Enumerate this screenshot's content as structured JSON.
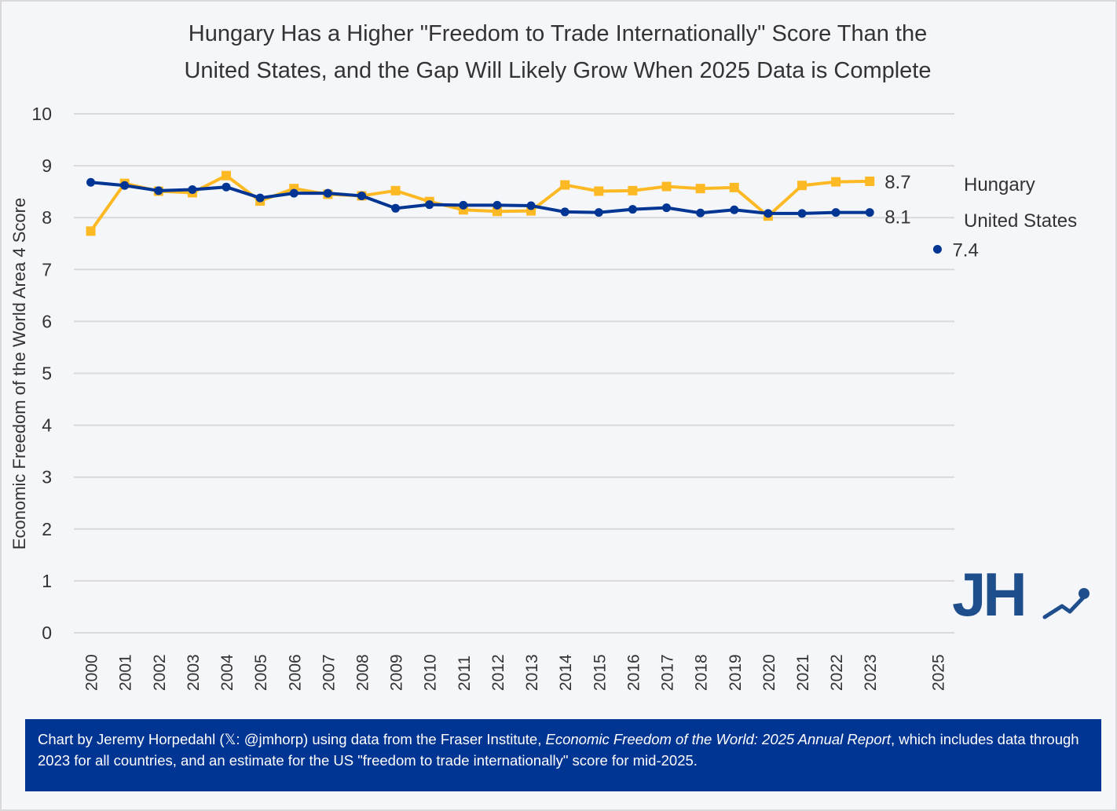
{
  "title": {
    "line1": "Hungary Has a Higher \"Freedom to Trade Internationally\" Score Than the",
    "line2": "United States, and the Gap Will Likely Grow When 2025 Data is Complete"
  },
  "colors": {
    "background": "#F5F6FA",
    "hungary": "#FDB924",
    "united_states": "#003594",
    "gridline": "#D9D9D9",
    "text": "#333333",
    "footer_bg": "#003594",
    "logo": "#1F4E8C"
  },
  "logo": {
    "text": "JH",
    "icon": "trend-line-icon"
  },
  "footer": {
    "part1": "Chart by Jeremy Horpedahl (𝕏: @jmhorp) using data from the Fraser Institute, ",
    "italic": "Economic Freedom of the World: 2025 Annual Report",
    "part2": ", which includes data through 2023 for all countries, and an estimate for the US \"freedom to trade internationally\" score for mid-2025."
  },
  "chart_data": {
    "type": "line",
    "title": "Hungary Has a Higher \"Freedom to Trade Internationally\" Score Than the United States, and the Gap Will Likely Grow When 2025 Data is Complete",
    "xlabel": "",
    "ylabel": "Economic Freedom of the World Area 4 Score",
    "ylim": [
      0,
      10
    ],
    "yticks": [
      "0",
      "1",
      "2",
      "3",
      "4",
      "5",
      "6",
      "7",
      "8",
      "9",
      "10"
    ],
    "categories": [
      "2000",
      "2001",
      "2002",
      "2003",
      "2004",
      "2005",
      "2006",
      "2007",
      "2008",
      "2009",
      "2010",
      "2011",
      "2012",
      "2013",
      "2014",
      "2015",
      "2016",
      "2017",
      "2018",
      "2019",
      "2020",
      "2021",
      "2022",
      "2023",
      "",
      "2025"
    ],
    "grid": true,
    "legend_position": "right",
    "series": [
      {
        "name": "Hungary",
        "marker": "square",
        "values": [
          7.74,
          8.66,
          8.51,
          8.48,
          8.81,
          8.32,
          8.56,
          8.45,
          8.42,
          8.52,
          8.31,
          8.15,
          8.12,
          8.13,
          8.63,
          8.51,
          8.52,
          8.6,
          8.56,
          8.58,
          8.03,
          8.62,
          8.69,
          8.7,
          null,
          null
        ],
        "end_label": "8.7"
      },
      {
        "name": "United States",
        "marker": "circle",
        "values": [
          8.68,
          8.62,
          8.52,
          8.54,
          8.59,
          8.38,
          8.47,
          8.47,
          8.42,
          8.18,
          8.25,
          8.24,
          8.24,
          8.23,
          8.11,
          8.1,
          8.16,
          8.19,
          8.09,
          8.15,
          8.08,
          8.08,
          8.1,
          8.1,
          null,
          null
        ],
        "end_label": "8.1"
      },
      {
        "name": "United States (2025 estimate)",
        "marker": "circle",
        "values": [
          null,
          null,
          null,
          null,
          null,
          null,
          null,
          null,
          null,
          null,
          null,
          null,
          null,
          null,
          null,
          null,
          null,
          null,
          null,
          null,
          null,
          null,
          null,
          null,
          null,
          7.39
        ],
        "end_label": "7.4"
      }
    ],
    "legend": [
      "Hungary",
      "United States"
    ]
  }
}
